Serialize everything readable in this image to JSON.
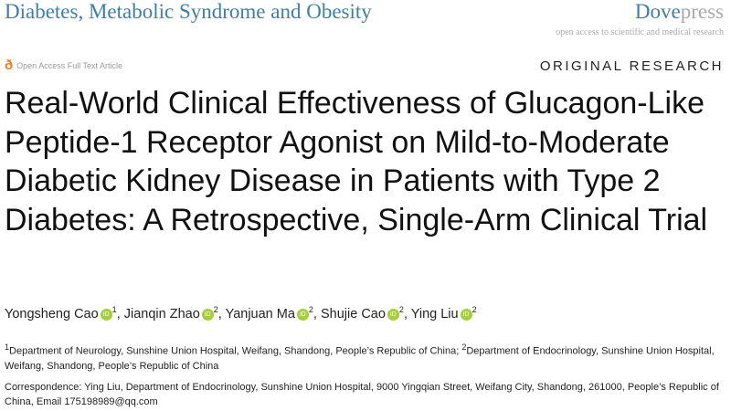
{
  "header": {
    "journal": "Diabetes, Metabolic Syndrome and Obesity",
    "publisher_bold": "Dove",
    "publisher_light": "press",
    "tagline": "open access to scientific and medical research",
    "open_access": "Open Access Full Text Article",
    "article_type": "ORIGINAL RESEARCH",
    "accent": "#3d7fa6"
  },
  "title": "Real-World Clinical Effectiveness of Glucagon-Like Peptide-1 Receptor Agonist on Mild-to-Moderate Diabetic Kidney Disease in Patients with Type 2 Diabetes: A Retrospective, Single-Arm Clinical Trial",
  "authors": [
    {
      "name": "Yongsheng Cao",
      "aff": "1"
    },
    {
      "name": "Jianqin Zhao",
      "aff": "2"
    },
    {
      "name": "Yanjuan Ma",
      "aff": "2"
    },
    {
      "name": "Shujie Cao",
      "aff": "2"
    },
    {
      "name": "Ying Liu",
      "aff": "2"
    }
  ],
  "affiliations": {
    "n1": "1",
    "a1": "Department of Neurology, Sunshine Union Hospital, Weifang, Shandong, People’s Republic of China; ",
    "n2": "2",
    "a2": "Department of Endocrinology, Sunshine Union Hospital, Weifang, Shandong, People’s Republic of China"
  },
  "correspondence": "Correspondence: Ying Liu, Department of Endocrinology, Sunshine Union Hospital, 9000 Yingqian Street, Weifang City, Shandong, 261000, People’s Republic of China, Email 175198989@qq.com"
}
